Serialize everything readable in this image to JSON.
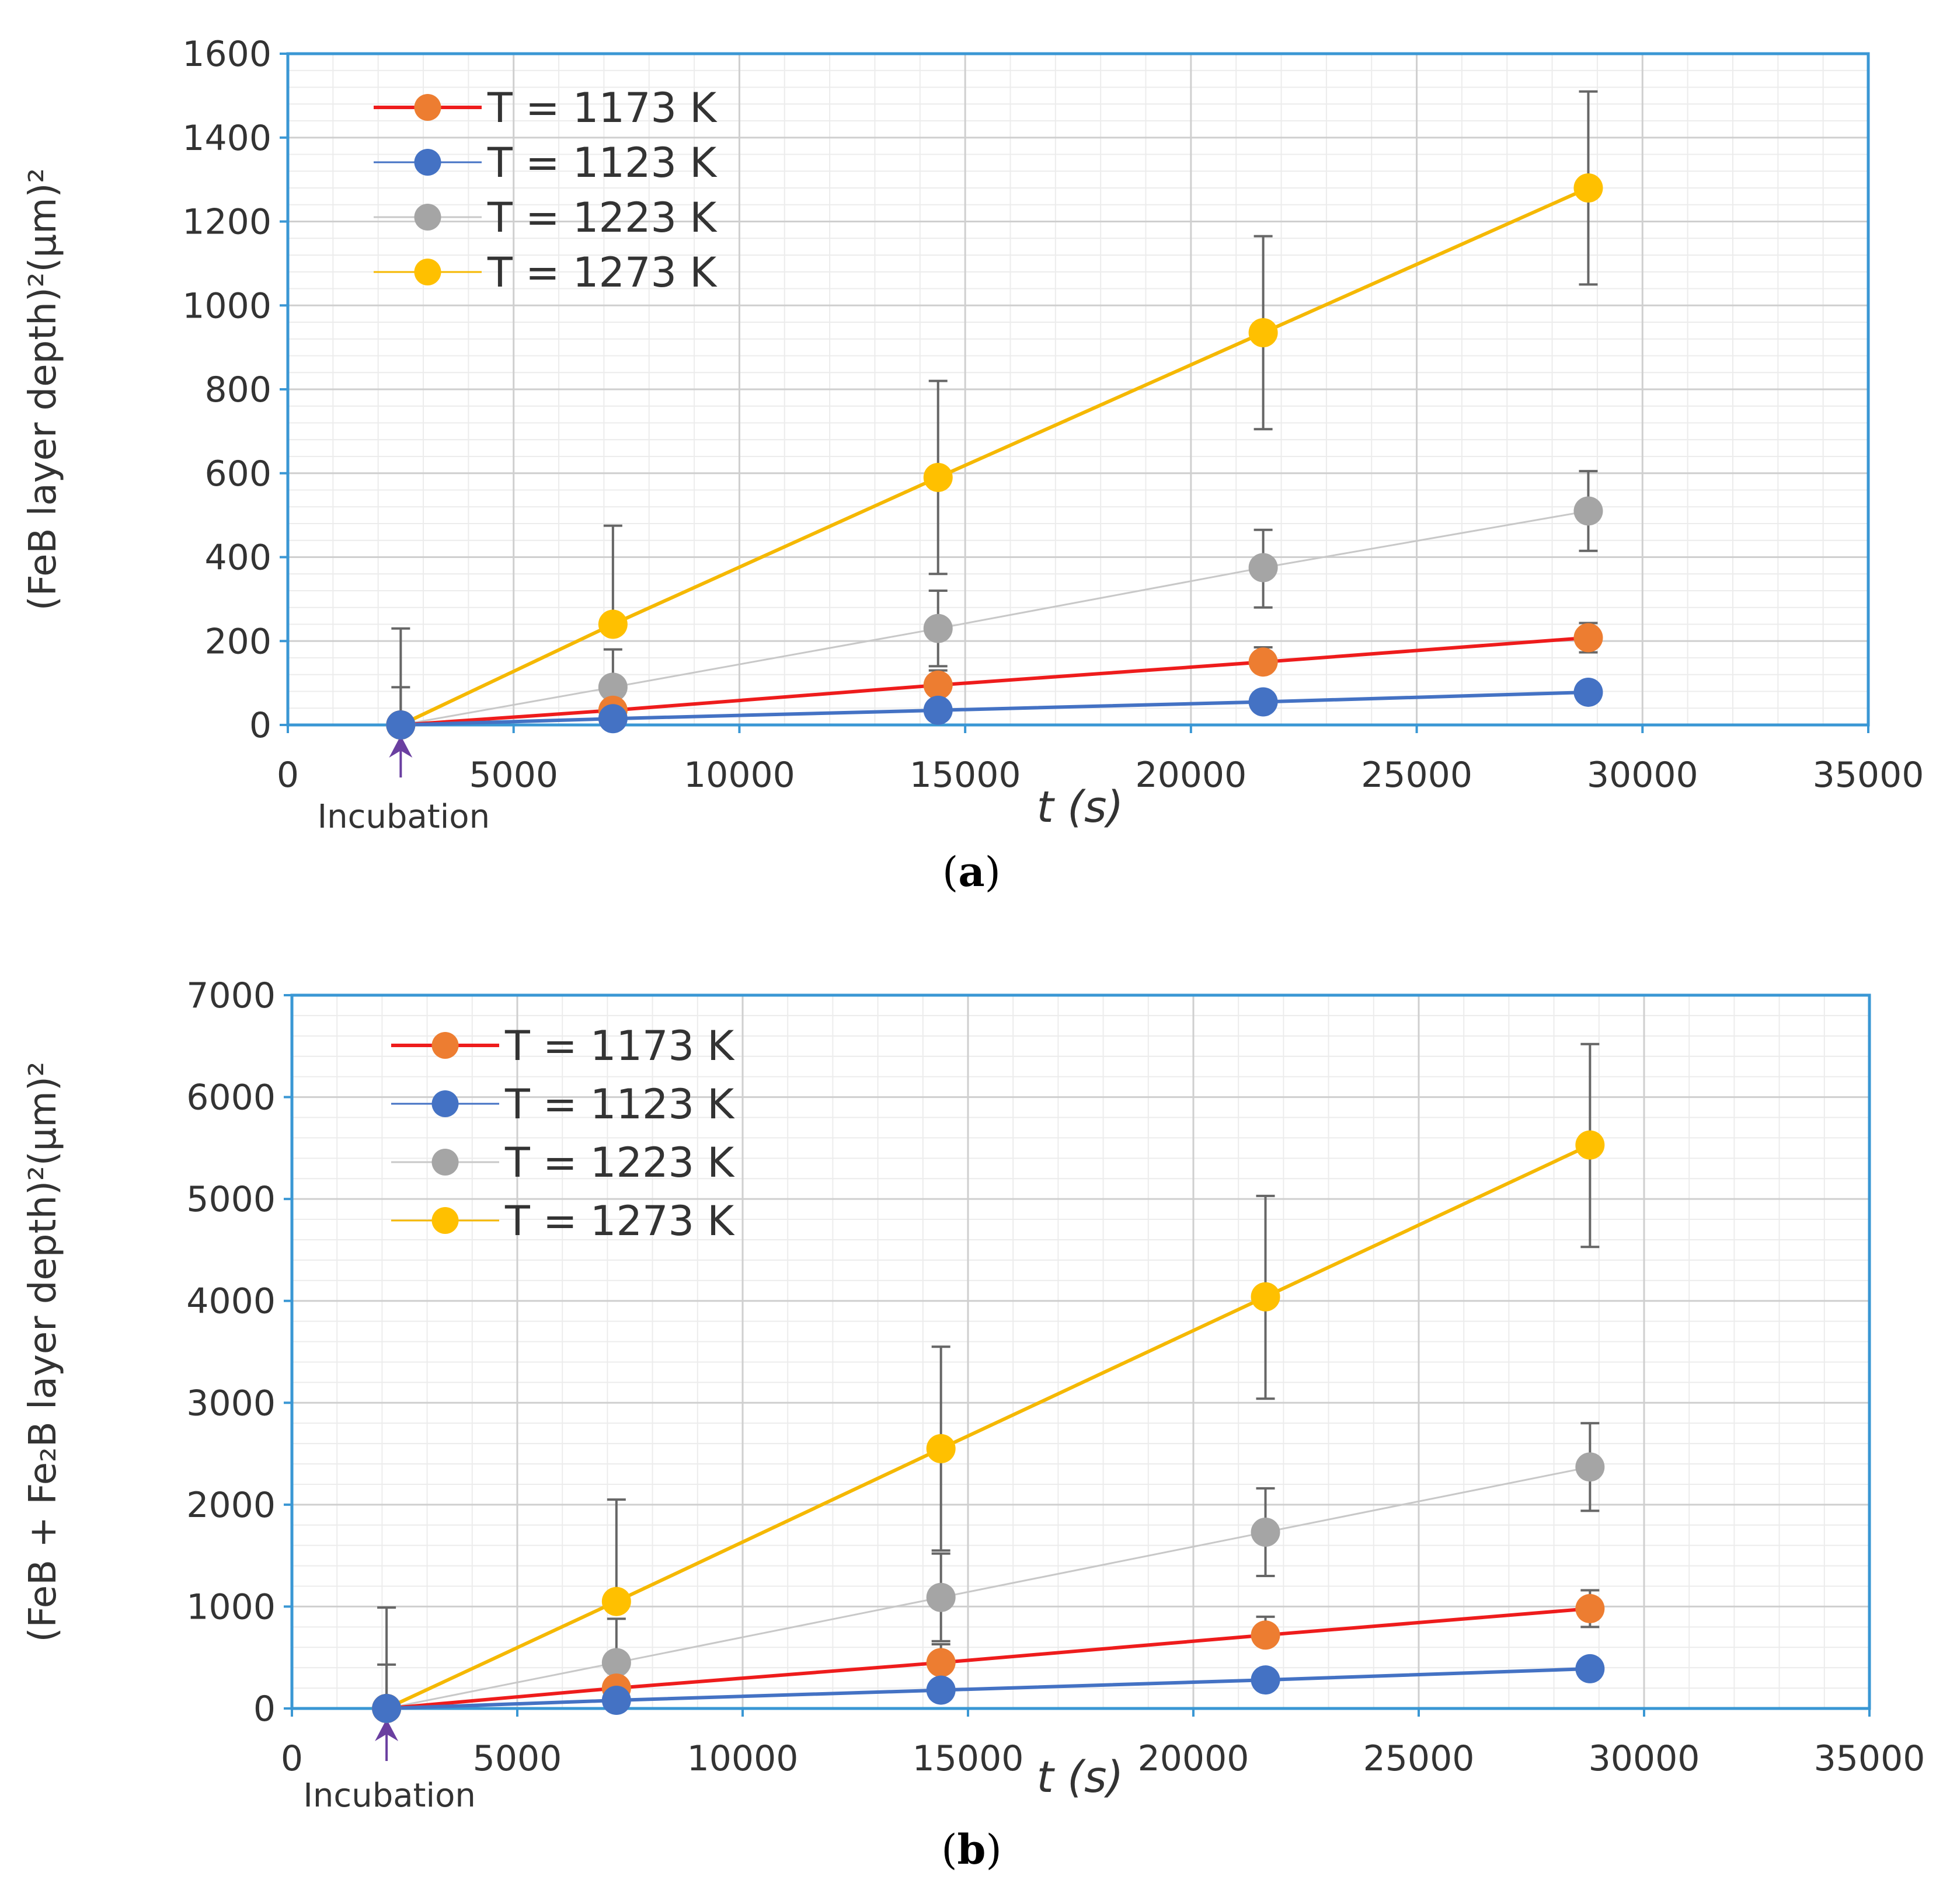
{
  "chart_data": [
    {
      "type": "line",
      "panel_label": "a",
      "xlabel": "t (s)",
      "ylabel": "(FeB layer depth)²(μm)²",
      "xlim": [
        0,
        35000
      ],
      "ylim": [
        0,
        1600
      ],
      "x_ticks": [
        0,
        5000,
        10000,
        15000,
        20000,
        25000,
        30000,
        35000
      ],
      "x_tick_labels": [
        "0",
        "5000",
        "10000",
        "15000",
        "20000",
        "25000",
        "30000",
        "35000"
      ],
      "y_ticks": [
        0,
        200,
        400,
        600,
        800,
        1000,
        1200,
        1400,
        1600
      ],
      "y_tick_labels": [
        "0",
        "200",
        "400",
        "600",
        "800",
        "1000",
        "1200",
        "1400",
        "1600"
      ],
      "grid": true,
      "annotation": {
        "text": "Incubation",
        "x": 2500,
        "color": "#6a3fa0"
      },
      "legend_position": "top-left",
      "x": [
        2500,
        7200,
        14400,
        21600,
        28800
      ],
      "series": [
        {
          "name": "T = 1173 K",
          "line_color": "#ee1c1c",
          "marker_color": "#ed7d31",
          "values": [
            0,
            35,
            95,
            150,
            208
          ],
          "error_upper": [
            0,
            0,
            35,
            35,
            35
          ],
          "error_lower": [
            0,
            0,
            0,
            0,
            35
          ]
        },
        {
          "name": "T = 1123 K",
          "line_color": "#4472c4",
          "marker_color": "#4472c4",
          "values": [
            0,
            15,
            35,
            55,
            78
          ],
          "error_upper": [
            0,
            0,
            0,
            0,
            0
          ],
          "error_lower": [
            0,
            0,
            0,
            0,
            0
          ]
        },
        {
          "name": "T = 1223 K",
          "line_color": "#c8c8c8",
          "marker_color": "#a5a5a5",
          "values": [
            0,
            90,
            230,
            375,
            510
          ],
          "error_upper": [
            90,
            90,
            90,
            90,
            95
          ],
          "error_lower": [
            0,
            0,
            90,
            95,
            95
          ]
        },
        {
          "name": "T = 1273 K",
          "line_color": "#f5b800",
          "marker_color": "#ffc000",
          "values": [
            0,
            240,
            590,
            935,
            1280
          ],
          "error_upper": [
            230,
            235,
            230,
            230,
            230
          ],
          "error_lower": [
            0,
            0,
            230,
            230,
            230
          ]
        }
      ]
    },
    {
      "type": "line",
      "panel_label": "b",
      "xlabel": "t (s)",
      "ylabel": "(FeB + Fe₂B layer depth)²(μm)²",
      "xlim": [
        0,
        35000
      ],
      "ylim": [
        0,
        7000
      ],
      "x_ticks": [
        0,
        5000,
        10000,
        15000,
        20000,
        25000,
        30000,
        35000
      ],
      "x_tick_labels": [
        "0",
        "5000",
        "10000",
        "15000",
        "20000",
        "25000",
        "30000",
        "35000"
      ],
      "y_ticks": [
        0,
        1000,
        2000,
        3000,
        4000,
        5000,
        6000,
        7000
      ],
      "y_tick_labels": [
        "0",
        "1000",
        "2000",
        "3000",
        "4000",
        "5000",
        "6000",
        "7000"
      ],
      "grid": true,
      "annotation": {
        "text": "Incubation",
        "x": 2100,
        "color": "#6a3fa0"
      },
      "legend_position": "top-left",
      "x": [
        2100,
        7200,
        14400,
        21600,
        28800
      ],
      "series": [
        {
          "name": "T = 1173 K",
          "line_color": "#ee1c1c",
          "marker_color": "#ed7d31",
          "values": [
            0,
            200,
            450,
            720,
            980
          ],
          "error_upper": [
            0,
            0,
            180,
            180,
            180
          ],
          "error_lower": [
            0,
            0,
            0,
            0,
            180
          ]
        },
        {
          "name": "T = 1123 K",
          "line_color": "#4472c4",
          "marker_color": "#4472c4",
          "values": [
            0,
            80,
            180,
            280,
            390
          ],
          "error_upper": [
            0,
            0,
            0,
            0,
            0
          ],
          "error_lower": [
            0,
            0,
            0,
            0,
            0
          ]
        },
        {
          "name": "T = 1223 K",
          "line_color": "#c8c8c8",
          "marker_color": "#a5a5a5",
          "values": [
            0,
            450,
            1090,
            1730,
            2370
          ],
          "error_upper": [
            430,
            430,
            430,
            430,
            430
          ],
          "error_lower": [
            0,
            0,
            430,
            430,
            430
          ]
        },
        {
          "name": "T = 1273 K",
          "line_color": "#f5b800",
          "marker_color": "#ffc000",
          "values": [
            0,
            1050,
            2550,
            4040,
            5530
          ],
          "error_upper": [
            990,
            1000,
            1000,
            990,
            990
          ],
          "error_lower": [
            0,
            0,
            1000,
            1000,
            1000
          ]
        }
      ]
    }
  ]
}
